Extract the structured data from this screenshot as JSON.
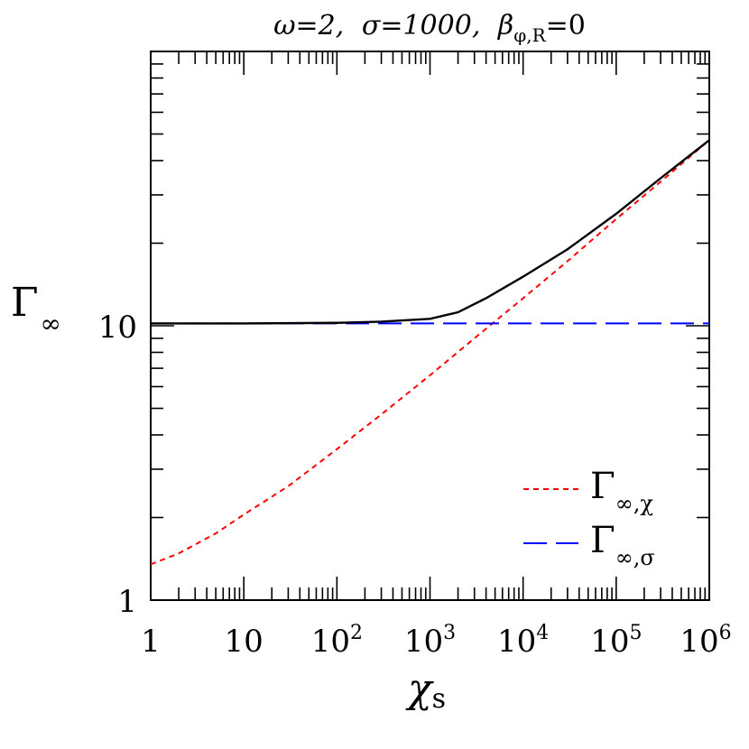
{
  "chart_data": {
    "type": "line",
    "title": {
      "omega": "ω=2,",
      "sigma": "σ=1000,",
      "beta": "β",
      "beta_sub": "φ,R",
      "beta_val": "=0"
    },
    "xlabel": {
      "main": "χ",
      "sub": "s"
    },
    "ylabel": {
      "main": "Γ",
      "sub": "∞"
    },
    "xscale": "log",
    "yscale": "log",
    "xlim": [
      1,
      1000000
    ],
    "ylim": [
      1,
      100
    ],
    "x_tick_labels": [
      {
        "value": 1,
        "text": "1"
      },
      {
        "value": 10,
        "text": "10"
      },
      {
        "value": 100,
        "base": "10",
        "exp": "2"
      },
      {
        "value": 1000,
        "base": "10",
        "exp": "3"
      },
      {
        "value": 10000,
        "base": "10",
        "exp": "4"
      },
      {
        "value": 100000,
        "base": "10",
        "exp": "5"
      },
      {
        "value": 1000000,
        "base": "10",
        "exp": "6"
      }
    ],
    "y_tick_labels": [
      {
        "value": 1,
        "text": "1"
      },
      {
        "value": 10,
        "text": "10"
      }
    ],
    "legend_position": "bottom-right",
    "series": [
      {
        "key": "total",
        "color": "#000000",
        "dash": "solid",
        "x": [
          1,
          10,
          100,
          300,
          1000,
          2000,
          4000,
          10000,
          30000,
          100000,
          300000,
          1000000
        ],
        "y": [
          10.2,
          10.2,
          10.25,
          10.35,
          10.6,
          11.2,
          12.6,
          15.1,
          19.0,
          25.6,
          34.5,
          47.5
        ]
      },
      {
        "key": "gamma_chi",
        "legend": {
          "main": "Γ",
          "sub": "∞,χ"
        },
        "color": "#ff0000",
        "dash": "short",
        "x": [
          1,
          2,
          5,
          10,
          30,
          100,
          300,
          1000,
          3000,
          10000,
          30000,
          100000,
          300000,
          1000000
        ],
        "y": [
          1.35,
          1.48,
          1.75,
          2.05,
          2.6,
          3.55,
          4.75,
          6.6,
          9.0,
          12.6,
          17.2,
          24.5,
          33.5,
          47.5
        ]
      },
      {
        "key": "gamma_sigma",
        "legend": {
          "main": "Γ",
          "sub": "∞,σ"
        },
        "color": "#0000ff",
        "dash": "long",
        "x": [
          1,
          1000000
        ],
        "y": [
          10.2,
          10.2
        ]
      }
    ]
  }
}
